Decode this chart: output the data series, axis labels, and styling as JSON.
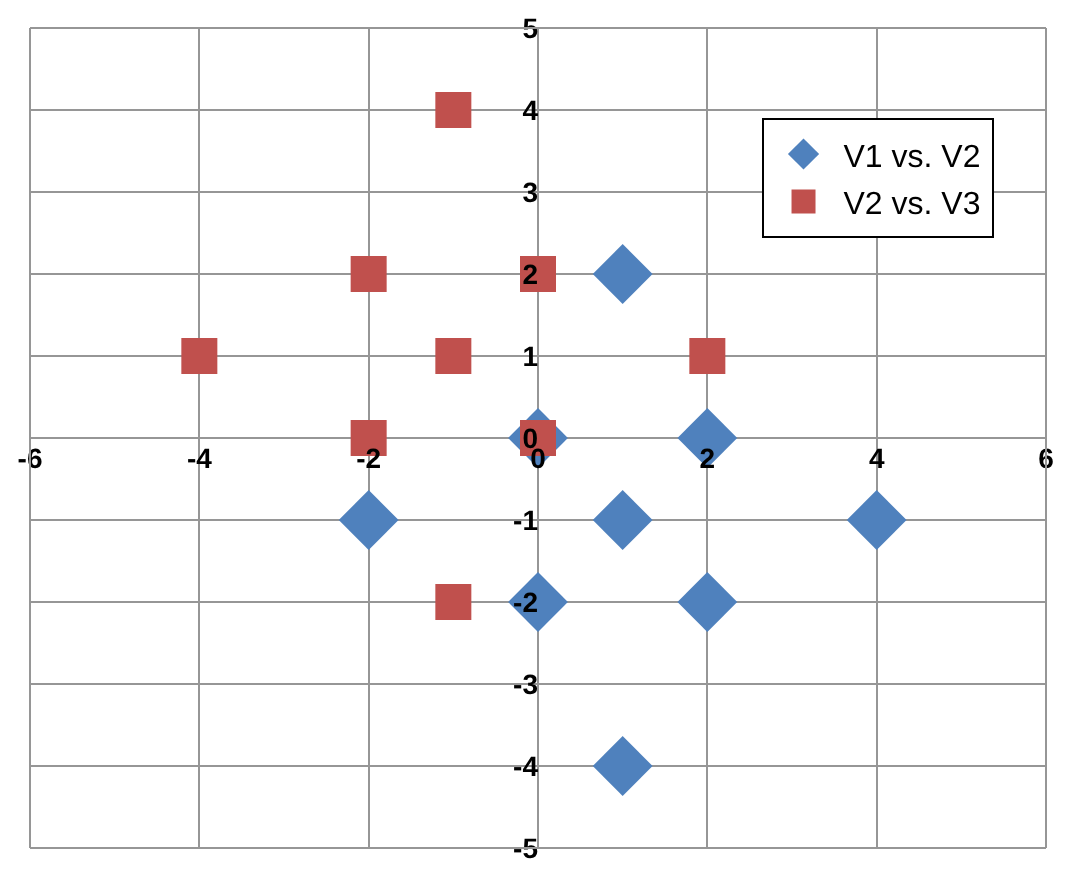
{
  "chart_data": {
    "type": "scatter",
    "xlim": [
      -6,
      6
    ],
    "xticks": [
      -6,
      -4,
      -2,
      0,
      2,
      4,
      6
    ],
    "ylim": [
      -5,
      5
    ],
    "yticks": [
      -5,
      -4,
      -3,
      -2,
      -1,
      0,
      1,
      2,
      3,
      4,
      5
    ],
    "grid": true,
    "legend": "top right",
    "series": [
      {
        "name": "V1 vs. V2",
        "color": "#4f81bd",
        "marker": "diamond",
        "x": [
          1,
          0,
          2,
          -2,
          1,
          4,
          0,
          2,
          1
        ],
        "values": [
          2,
          0,
          0,
          -1,
          -1,
          -1,
          -2,
          -2,
          -4
        ]
      },
      {
        "name": "V2 vs. V3",
        "color": "#c0504d",
        "marker": "square",
        "x": [
          -1,
          -2,
          0,
          -4,
          -1,
          2,
          -2,
          0,
          -1
        ],
        "values": [
          4,
          2,
          2,
          1,
          1,
          1,
          0,
          0,
          -2
        ]
      }
    ]
  }
}
